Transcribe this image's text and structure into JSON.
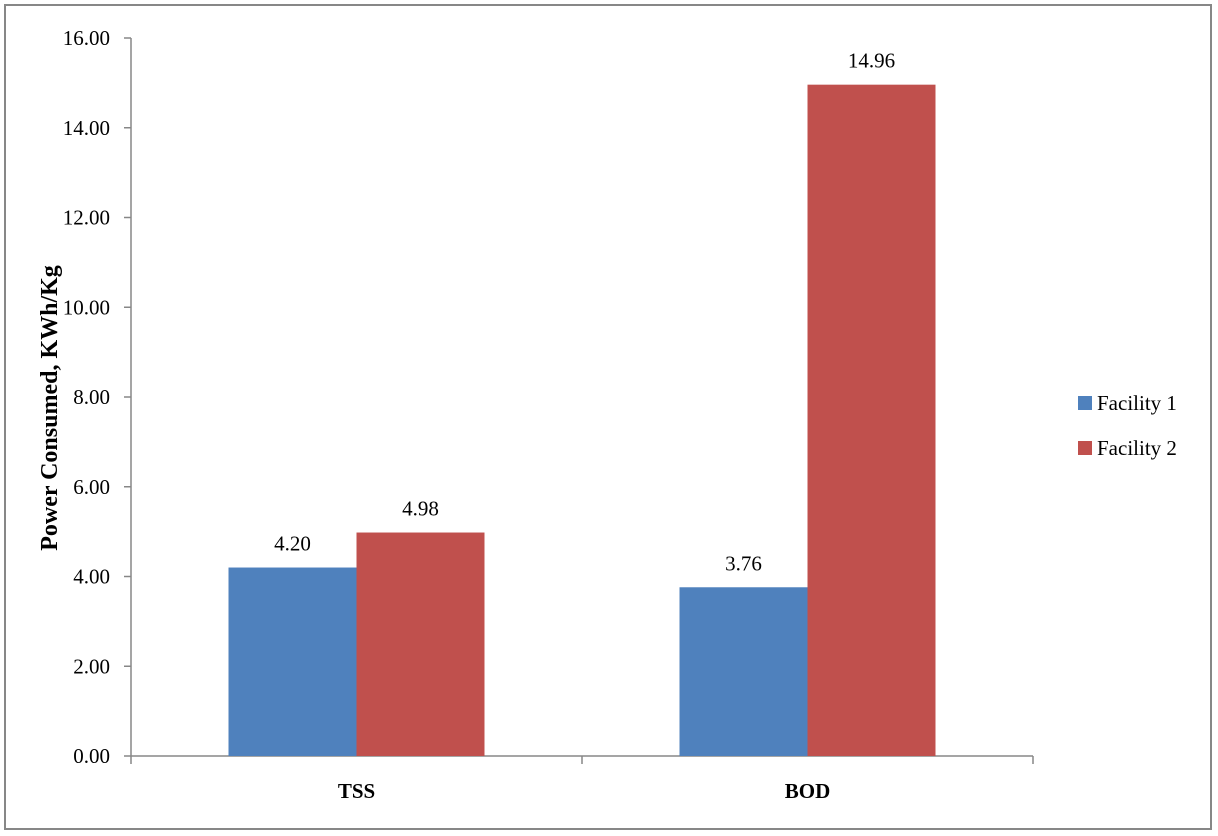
{
  "chart_data": {
    "type": "bar",
    "title": "",
    "xlabel": "",
    "ylabel": "Power Consumed, KWh/Kg",
    "categories": [
      "TSS",
      "BOD"
    ],
    "series": [
      {
        "name": "Facility 1",
        "color": "#4F81BD",
        "values": [
          4.2,
          3.76
        ],
        "labels": [
          "4.20",
          "3.76"
        ]
      },
      {
        "name": "Facility 2",
        "color": "#C0504D",
        "values": [
          4.98,
          14.96
        ],
        "labels": [
          "4.98",
          "14.96"
        ]
      }
    ],
    "ylim": [
      0,
      16
    ],
    "ytick_step": 2,
    "yticks": [
      "0.00",
      "2.00",
      "4.00",
      "6.00",
      "8.00",
      "10.00",
      "12.00",
      "14.00",
      "16.00"
    ],
    "grid": false,
    "legend_position": "right"
  }
}
